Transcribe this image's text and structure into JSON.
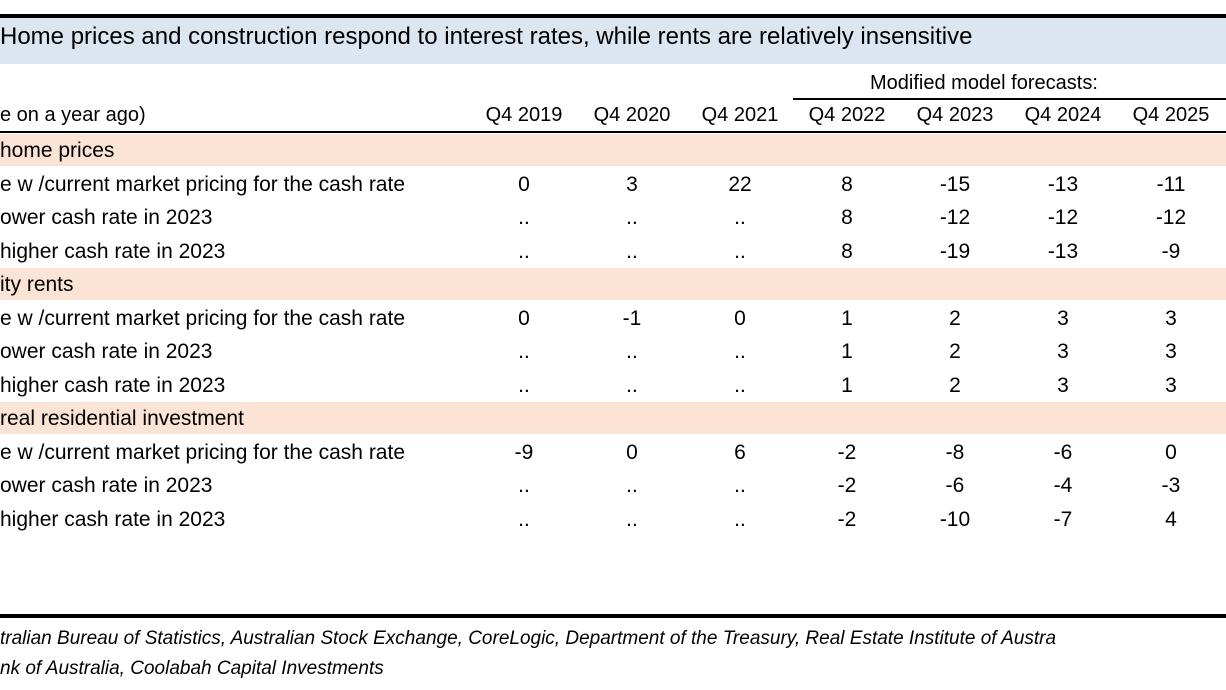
{
  "title": "Home prices and construction respond to interest rates, while rents are relatively insensitive",
  "forecast_label": "Modified model forecasts:",
  "unit_label": "e on a year ago)",
  "colors": {
    "title_band": "#dce6f1",
    "section_band": "#fbe3d6"
  },
  "chart_data": {
    "type": "table",
    "columns": [
      "Q4 2019",
      "Q4 2020",
      "Q4 2021",
      "Q4 2022",
      "Q4 2023",
      "Q4 2024",
      "Q4 2025"
    ],
    "sections": [
      {
        "label": "home prices",
        "rows": [
          {
            "label": "e w /current market pricing for the cash rate",
            "values": [
              "0",
              "3",
              "22",
              "8",
              "-15",
              "-13",
              "-11"
            ]
          },
          {
            "label": "ower cash rate in 2023",
            "values": [
              "..",
              "..",
              "..",
              "8",
              "-12",
              "-12",
              "-12"
            ]
          },
          {
            "label": "higher cash rate in 2023",
            "values": [
              "..",
              "..",
              "..",
              "8",
              "-19",
              "-13",
              "-9"
            ]
          }
        ]
      },
      {
        "label": "ity rents",
        "rows": [
          {
            "label": "e w /current market pricing for the cash rate",
            "values": [
              "0",
              "-1",
              "0",
              "1",
              "2",
              "3",
              "3"
            ]
          },
          {
            "label": "ower cash rate in 2023",
            "values": [
              "..",
              "..",
              "..",
              "1",
              "2",
              "3",
              "3"
            ]
          },
          {
            "label": "higher cash rate in 2023",
            "values": [
              "..",
              "..",
              "..",
              "1",
              "2",
              "3",
              "3"
            ]
          }
        ]
      },
      {
        "label": "real residential investment",
        "rows": [
          {
            "label": "e w /current market pricing for the cash rate",
            "values": [
              "-9",
              "0",
              "6",
              "-2",
              "-8",
              "-6",
              "0"
            ]
          },
          {
            "label": "ower cash rate in 2023",
            "values": [
              "..",
              "..",
              "..",
              "-2",
              "-6",
              "-4",
              "-3"
            ]
          },
          {
            "label": "higher cash rate in 2023",
            "values": [
              "..",
              "..",
              "..",
              "-2",
              "-10",
              "-7",
              "4"
            ]
          }
        ]
      }
    ]
  },
  "source_lines": [
    "tralian Bureau of Statistics, Australian Stock Exchange, CoreLogic, Department of the Treasury, Real Estate Institute of Austra",
    "nk of Australia, Coolabah Capital Investments"
  ]
}
